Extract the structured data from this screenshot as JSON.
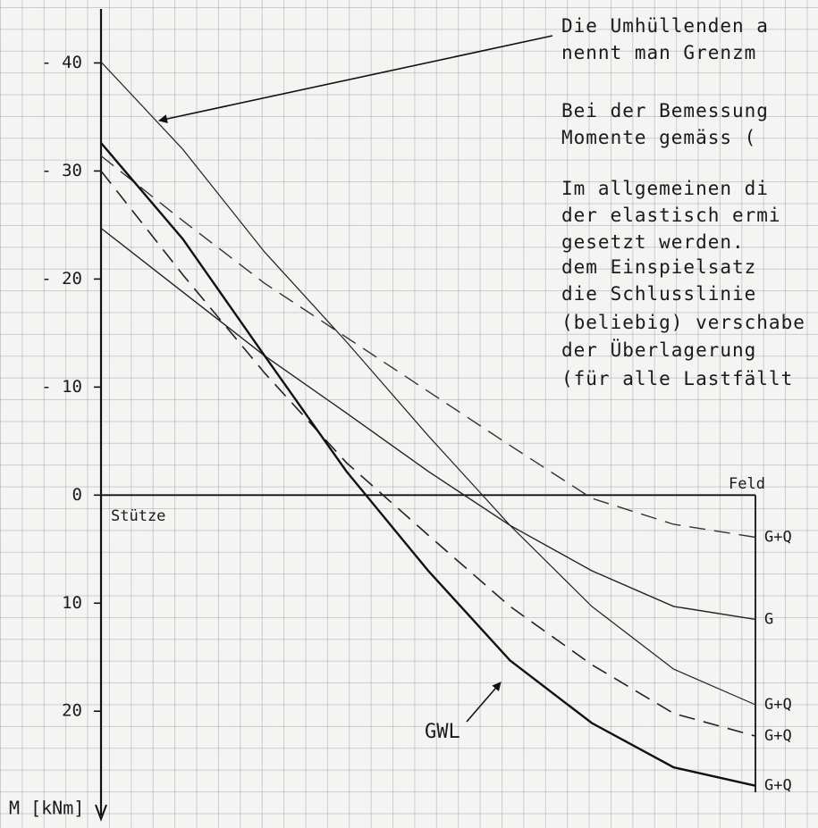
{
  "chart_data": {
    "type": "line",
    "y_label": "M [kNm]",
    "x_start_label": "Stütze",
    "x_end_label": "Feld",
    "xlim": [
      0,
      1
    ],
    "ylim": [
      -45,
      28
    ],
    "yticks": [
      {
        "value": -40,
        "label": "- 40"
      },
      {
        "value": -30,
        "label": "- 30"
      },
      {
        "value": -20,
        "label": "- 20"
      },
      {
        "value": -10,
        "label": "- 10"
      },
      0,
      10,
      20
    ],
    "grid": true,
    "x": [
      0,
      0.125,
      0.25,
      0.375,
      0.5,
      0.625,
      0.75,
      0.875,
      1
    ],
    "series": [
      {
        "name": "G+Q",
        "color": "#333333",
        "dashed": true,
        "width": 1.4,
        "values": [
          -31.4,
          -25.4,
          -19.6,
          -14.6,
          -9.6,
          -4.6,
          0.3,
          2.7,
          3.9
        ]
      },
      {
        "name": "G",
        "color": "#222222",
        "dashed": false,
        "width": 1.4,
        "values": [
          -24.7,
          -18.8,
          -12.9,
          -7.6,
          -2.2,
          2.8,
          7.0,
          10.3,
          11.5
        ]
      },
      {
        "name": "G+Q",
        "color": "#222222",
        "dashed": false,
        "width": 1.2,
        "values": [
          -40.1,
          -32.0,
          -22.5,
          -14.2,
          -5.5,
          2.8,
          10.3,
          16.1,
          19.4
        ]
      },
      {
        "name": "G+Q",
        "color": "#222222",
        "dashed": true,
        "width": 1.6,
        "values": [
          -30.0,
          -20.4,
          -11.3,
          -3.0,
          3.7,
          10.3,
          15.7,
          20.2,
          22.3
        ]
      },
      {
        "name": "G+Q",
        "color": "#111111",
        "dashed": false,
        "width": 2.4,
        "values": [
          -32.6,
          -23.7,
          -12.9,
          -2.2,
          7.0,
          15.3,
          21.1,
          25.2,
          26.9
        ]
      }
    ],
    "annotations": {
      "gwl": "GWL"
    },
    "notes": [
      "Die Umhüllenden a",
      "nennt man Grenzm",
      "Bei der Bemessung",
      "Momente gemäss (",
      "Im allgemeinen di",
      "der elastisch ermi",
      "gesetzt werden.",
      "dem Einspielsatz",
      "die Schlusslinie",
      "(beliebig) verschabe",
      "der Überlagerung",
      "(für alle Lastfällt"
    ]
  }
}
